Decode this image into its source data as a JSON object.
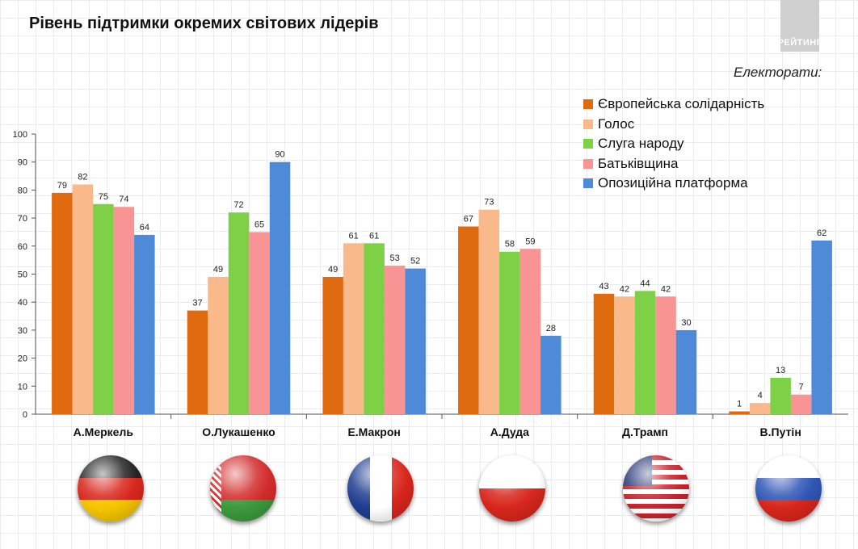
{
  "header": {
    "title": "Рівень підтримки окремих світових лідерів",
    "brand": "РЕЙТИНГ"
  },
  "legend": {
    "title": "Електорати:"
  },
  "colors": {
    "accent": "#e06a10"
  },
  "flags": [
    "germany-flag-icon",
    "belarus-flag-icon",
    "france-flag-icon",
    "poland-flag-icon",
    "usa-flag-icon",
    "russia-flag-icon"
  ],
  "chart_data": {
    "type": "bar",
    "title": "Рівень підтримки окремих світових лідерів",
    "xlabel": "",
    "ylabel": "",
    "ylim": [
      0,
      100
    ],
    "yticks": [
      0,
      10,
      20,
      30,
      40,
      50,
      60,
      70,
      80,
      90,
      100
    ],
    "grid": false,
    "legend_position": "top-right",
    "categories": [
      "А.Меркель",
      "О.Лукашенко",
      "Е.Макрон",
      "А.Дуда",
      "Д.Трамп",
      "В.Путін"
    ],
    "series": [
      {
        "name": "Європейська солідарність",
        "color": "#e06a10",
        "values": [
          79,
          37,
          49,
          67,
          43,
          1
        ]
      },
      {
        "name": "Голос",
        "color": "#f9b98a",
        "values": [
          82,
          49,
          61,
          73,
          42,
          4
        ]
      },
      {
        "name": "Слуга народу",
        "color": "#7ed047",
        "values": [
          75,
          72,
          61,
          58,
          44,
          13
        ]
      },
      {
        "name": "Батьківщина",
        "color": "#f99494",
        "values": [
          74,
          65,
          53,
          59,
          42,
          7
        ]
      },
      {
        "name": "Опозиційна платформа",
        "color": "#4f8ad8",
        "values": [
          64,
          90,
          52,
          28,
          30,
          62
        ]
      }
    ]
  }
}
